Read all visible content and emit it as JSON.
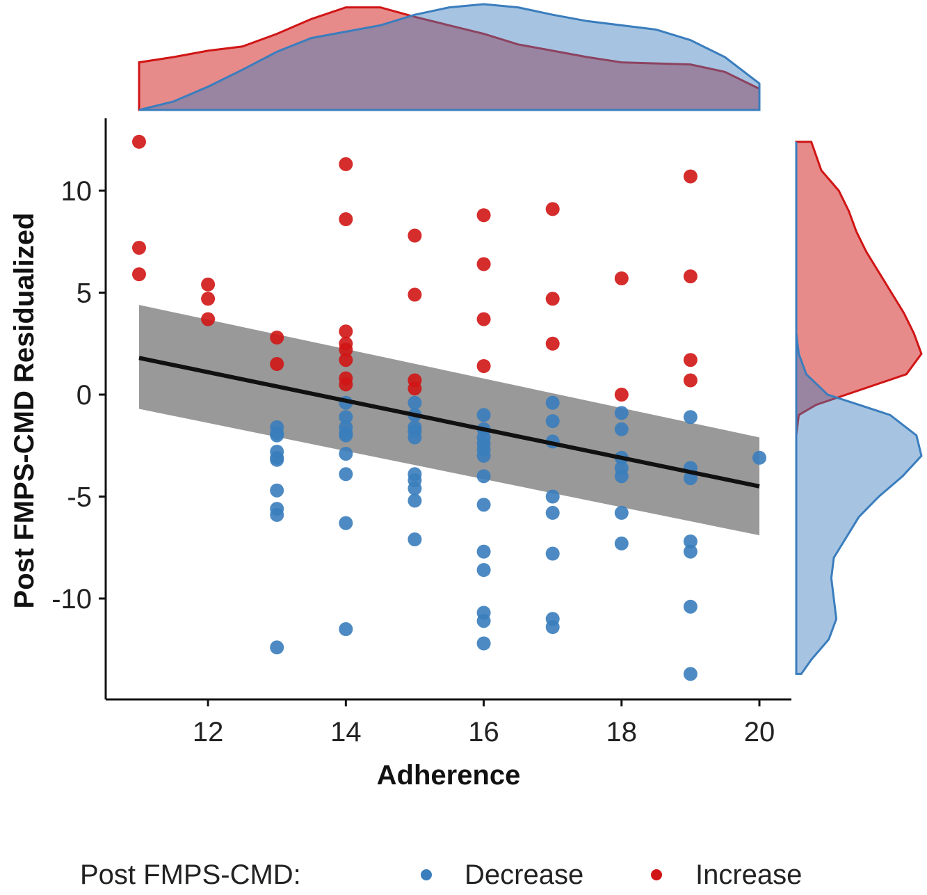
{
  "chart_data": {
    "type": "scatter",
    "xlabel": "Adherence",
    "ylabel": "Post FMPS-CMD Residualized",
    "xlim": [
      10.6,
      20.5
    ],
    "ylim": [
      -14.5,
      13.5
    ],
    "x_ticks": [
      12,
      14,
      16,
      18,
      20
    ],
    "y_ticks": [
      10,
      5,
      0,
      -5,
      -10
    ],
    "y_tick_labels": [
      "10",
      "5",
      "0",
      "-5",
      "-10"
    ],
    "legend": {
      "title": "Post FMPS-CMD:",
      "position": "bottom",
      "entries": [
        "Decrease",
        "Increase"
      ]
    },
    "colors": {
      "Decrease": "#3a7dbd",
      "Increase": "#d01515",
      "fit_line": "#111111",
      "band": "#555555",
      "overlap": "#8e7fa0"
    },
    "grid": false,
    "series": [
      {
        "name": "Decrease",
        "points": [
          [
            13,
            -1.6
          ],
          [
            13,
            -1.9
          ],
          [
            13,
            -2.0
          ],
          [
            13,
            -2.8
          ],
          [
            13,
            -3.1
          ],
          [
            13,
            -3.2
          ],
          [
            13,
            -4.7
          ],
          [
            13,
            -5.6
          ],
          [
            13,
            -5.9
          ],
          [
            13,
            -12.4
          ],
          [
            14,
            -0.4
          ],
          [
            14,
            -1.1
          ],
          [
            14,
            -1.6
          ],
          [
            14,
            -1.9
          ],
          [
            14,
            -2.0
          ],
          [
            14,
            -2.9
          ],
          [
            14,
            -3.9
          ],
          [
            14,
            -6.3
          ],
          [
            14,
            -11.5
          ],
          [
            15,
            -0.4
          ],
          [
            15,
            -1.0
          ],
          [
            15,
            -1.6
          ],
          [
            15,
            -1.8
          ],
          [
            15,
            -2.1
          ],
          [
            15,
            -3.9
          ],
          [
            15,
            -4.2
          ],
          [
            15,
            -4.6
          ],
          [
            15,
            -5.2
          ],
          [
            15,
            -7.1
          ],
          [
            16,
            -1.0
          ],
          [
            16,
            -1.7
          ],
          [
            16,
            -2.1
          ],
          [
            16,
            -2.4
          ],
          [
            16,
            -2.7
          ],
          [
            16,
            -3.0
          ],
          [
            16,
            -4.0
          ],
          [
            16,
            -5.4
          ],
          [
            16,
            -7.7
          ],
          [
            16,
            -8.6
          ],
          [
            16,
            -10.7
          ],
          [
            16,
            -11.1
          ],
          [
            16,
            -12.2
          ],
          [
            17,
            -0.4
          ],
          [
            17,
            -1.3
          ],
          [
            17,
            -2.3
          ],
          [
            17,
            -5.0
          ],
          [
            17,
            -5.8
          ],
          [
            17,
            -7.8
          ],
          [
            17,
            -11.0
          ],
          [
            17,
            -11.4
          ],
          [
            18,
            -0.9
          ],
          [
            18,
            -1.7
          ],
          [
            18,
            -3.1
          ],
          [
            18,
            -3.6
          ],
          [
            18,
            -4.0
          ],
          [
            18,
            -5.8
          ],
          [
            18,
            -7.3
          ],
          [
            19,
            -1.1
          ],
          [
            19,
            -3.6
          ],
          [
            19,
            -4.1
          ],
          [
            19,
            -7.2
          ],
          [
            19,
            -7.7
          ],
          [
            19,
            -10.4
          ],
          [
            19,
            -13.7
          ],
          [
            20,
            -3.1
          ]
        ]
      },
      {
        "name": "Increase",
        "points": [
          [
            11,
            12.4
          ],
          [
            11,
            7.2
          ],
          [
            11,
            5.9
          ],
          [
            12,
            5.4
          ],
          [
            12,
            4.7
          ],
          [
            12,
            3.7
          ],
          [
            13,
            2.8
          ],
          [
            13,
            1.5
          ],
          [
            14,
            11.3
          ],
          [
            14,
            8.6
          ],
          [
            14,
            3.1
          ],
          [
            14,
            2.5
          ],
          [
            14,
            2.2
          ],
          [
            14,
            1.7
          ],
          [
            14,
            0.8
          ],
          [
            14,
            0.5
          ],
          [
            15,
            7.8
          ],
          [
            15,
            4.9
          ],
          [
            15,
            0.7
          ],
          [
            15,
            0.3
          ],
          [
            16,
            8.8
          ],
          [
            16,
            6.4
          ],
          [
            16,
            3.7
          ],
          [
            16,
            1.4
          ],
          [
            17,
            9.1
          ],
          [
            17,
            4.7
          ],
          [
            17,
            2.5
          ],
          [
            18,
            5.7
          ],
          [
            18,
            0.0
          ],
          [
            19,
            10.7
          ],
          [
            19,
            5.8
          ],
          [
            19,
            1.7
          ],
          [
            19,
            0.7
          ]
        ]
      }
    ],
    "regression": {
      "x": [
        11,
        20
      ],
      "y": [
        1.8,
        -4.5
      ],
      "ci_lower": [
        -0.7,
        -6.9
      ],
      "ci_upper": [
        4.4,
        -2.1
      ]
    },
    "top_density": {
      "x": [
        11,
        11.5,
        12,
        12.5,
        13,
        13.5,
        14,
        14.5,
        15,
        15.5,
        16,
        16.5,
        17,
        17.5,
        18,
        18.5,
        19,
        19.5,
        20
      ],
      "Decrease": [
        0.0,
        0.08,
        0.22,
        0.38,
        0.55,
        0.68,
        0.74,
        0.8,
        0.9,
        0.97,
        1.0,
        0.97,
        0.9,
        0.84,
        0.8,
        0.76,
        0.66,
        0.5,
        0.25
      ],
      "Increase": [
        0.45,
        0.5,
        0.56,
        0.6,
        0.72,
        0.86,
        0.97,
        0.97,
        0.88,
        0.8,
        0.72,
        0.62,
        0.56,
        0.5,
        0.45,
        0.44,
        0.43,
        0.36,
        0.2
      ]
    },
    "right_density": {
      "y": [
        12.4,
        11,
        10,
        9,
        8,
        7,
        6,
        5,
        4,
        3,
        2,
        1,
        0,
        -0.5,
        -1,
        -2,
        -3,
        -4,
        -5,
        -6,
        -7,
        -8,
        -9,
        -10,
        -11,
        -12,
        -13,
        -13.7
      ],
      "Increase": [
        0.12,
        0.2,
        0.34,
        0.42,
        0.48,
        0.56,
        0.66,
        0.76,
        0.86,
        0.94,
        1.0,
        0.88,
        0.4,
        0.16,
        0.02,
        0.0,
        0.0,
        0.0,
        0.0,
        0.0,
        0.0,
        0.0,
        0.0,
        0.0,
        0.0,
        0.0,
        0.0,
        0.0
      ],
      "Decrease": [
        0.0,
        0.0,
        0.0,
        0.0,
        0.0,
        0.0,
        0.0,
        0.0,
        0.0,
        0.0,
        0.02,
        0.08,
        0.25,
        0.5,
        0.75,
        0.96,
        1.0,
        0.85,
        0.66,
        0.5,
        0.4,
        0.3,
        0.28,
        0.3,
        0.32,
        0.26,
        0.12,
        0.04
      ]
    }
  }
}
